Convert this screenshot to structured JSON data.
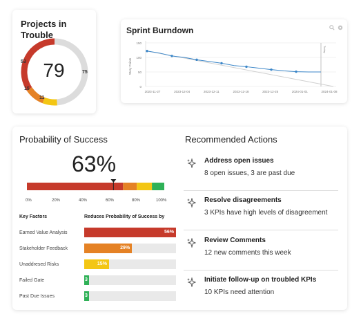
{
  "colors": {
    "red": "#c63a2b",
    "orange": "#e58225",
    "yellow": "#f3c614",
    "green": "#2fb157",
    "grey": "#dcdcdc",
    "line_blue": "#3b86c8"
  },
  "projects_in_trouble": {
    "title": "Projects in Trouble",
    "center_value": "79",
    "segments": [
      {
        "label": "53",
        "value": 53,
        "color": "#c63a2b"
      },
      {
        "label": "15",
        "value": 15,
        "color": "#e58225"
      },
      {
        "label": "11",
        "value": 11,
        "color": "#f3c614"
      },
      {
        "label": "75",
        "value": 75,
        "color": "#dcdcdc"
      }
    ]
  },
  "sprint_burndown": {
    "title": "Sprint Burndown",
    "icons": [
      "search-icon",
      "settings-icon"
    ],
    "chart_data": {
      "type": "line",
      "ylabel": "Story Points",
      "y_ticks": [
        "150",
        "100",
        "50",
        "0"
      ],
      "ylim": [
        0,
        150
      ],
      "x_ticks": [
        "2023-11-27",
        "2023-12-04",
        "2023-12-11",
        "2023-12-18",
        "2023-12-25",
        "2024-01-01",
        "2024-01-08"
      ],
      "marker_label": "Today",
      "series": [
        {
          "values": [
            122,
            115,
            105,
            100,
            92,
            86,
            80,
            72,
            68,
            63,
            58,
            54,
            51,
            50,
            50
          ]
        }
      ],
      "ideal": [
        122,
        0
      ]
    }
  },
  "probability": {
    "title": "Probability of Success",
    "value": "63%",
    "value_fraction": 0.63,
    "scale": [
      "0%",
      "20%",
      "40%",
      "60%",
      "80%",
      "100%"
    ],
    "bands": [
      {
        "upto": 0.7,
        "color": "#c63a2b"
      },
      {
        "upto": 0.8,
        "color": "#e58225"
      },
      {
        "upto": 0.91,
        "color": "#f3c614"
      },
      {
        "upto": 1.0,
        "color": "#2fb157"
      }
    ],
    "factors_header": "Key Factors",
    "reduces_header": "Reduces Probability of Success by",
    "factors": [
      {
        "label": "Earned Value Analysis",
        "value": "56%",
        "fraction": 1.0,
        "color": "#c63a2b"
      },
      {
        "label": "Stakeholder Feedback",
        "value": "29%",
        "fraction": 0.52,
        "color": "#e58225"
      },
      {
        "label": "Unaddresed Risks",
        "value": "15%",
        "fraction": 0.27,
        "color": "#f3c614"
      },
      {
        "label": "Failed Gate",
        "value": "3",
        "fraction": 0.05,
        "color": "#2fb157"
      },
      {
        "label": "Past Due Issues",
        "value": "3",
        "fraction": 0.05,
        "color": "#2fb157"
      }
    ]
  },
  "recommended": {
    "title": "Recommended Actions",
    "items": [
      {
        "title": "Address open issues",
        "detail": "8 open issues, 3 are past due"
      },
      {
        "title": "Resolve disagreements",
        "detail": "3 KPIs have high levels of disagreement"
      },
      {
        "title": "Review Comments",
        "detail": "12 new comments this week"
      },
      {
        "title": "Initiate follow-up on troubled KPIs",
        "detail": "10 KPIs need attention"
      }
    ]
  }
}
